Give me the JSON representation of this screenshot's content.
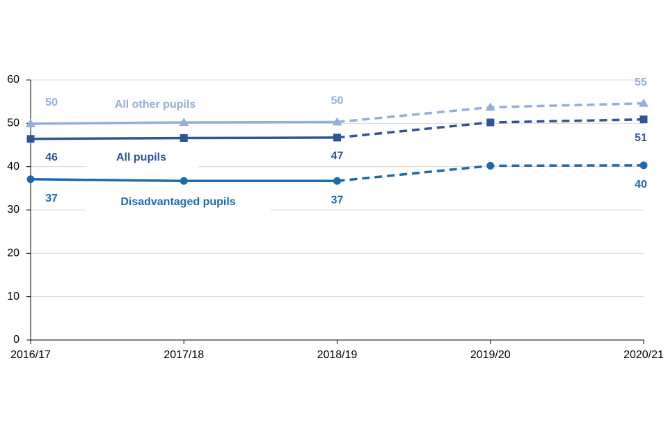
{
  "chart_data": {
    "type": "line",
    "categories": [
      "2016/17",
      "2017/18",
      "2018/19",
      "2019/20",
      "2020/21"
    ],
    "ylim": [
      0,
      60
    ],
    "yticks": [
      0,
      10,
      20,
      30,
      40,
      50,
      60
    ],
    "grid": true,
    "dashed_from": 2,
    "series": [
      {
        "name": "All other pupils",
        "color": "#94aedb",
        "marker": "triangle",
        "values": [
          49.9,
          50.2,
          50.3,
          53.7,
          54.6
        ],
        "value_labels": [
          "50",
          null,
          "50",
          null,
          "55"
        ]
      },
      {
        "name": "All pupils",
        "color": "#2f5597",
        "marker": "square",
        "values": [
          46.4,
          46.6,
          46.7,
          50.2,
          50.9
        ],
        "value_labels": [
          "46",
          null,
          "47",
          null,
          "51"
        ]
      },
      {
        "name": "Disadvantaged pupils",
        "color": "#1b6aab",
        "marker": "circle",
        "values": [
          37.1,
          36.7,
          36.7,
          40.2,
          40.3
        ],
        "value_labels": [
          "37",
          null,
          "37",
          null,
          "40"
        ]
      }
    ]
  }
}
